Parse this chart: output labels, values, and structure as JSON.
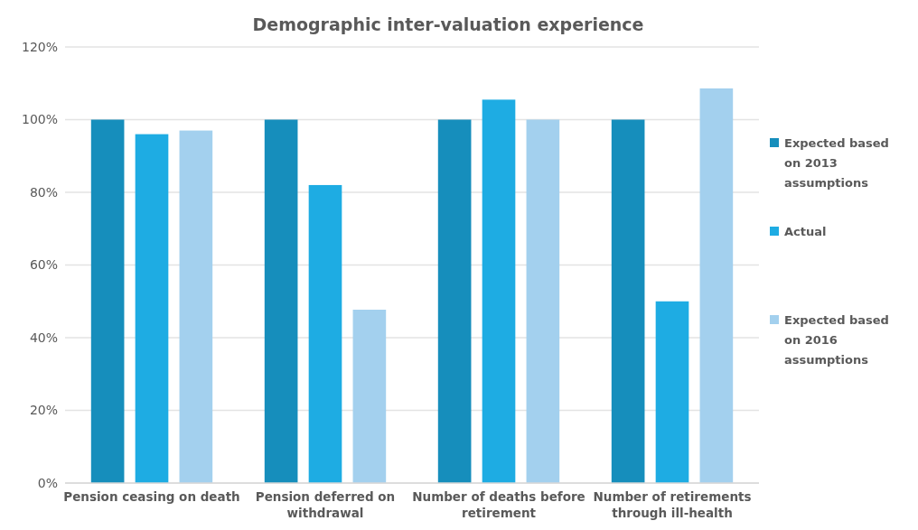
{
  "chart_data": {
    "type": "bar",
    "title": "Demographic inter-valuation experience",
    "categories": [
      "Pension ceasing on death",
      "Pension deferred on withdrawal",
      "Number of deaths before retirement",
      "Number of retirements through ill-health"
    ],
    "series": [
      {
        "name": "Expected based on 2013 assumptions",
        "color": "#168ebc",
        "values": [
          100,
          100,
          100,
          100
        ]
      },
      {
        "name": "Actual",
        "color": "#1eace3",
        "values": [
          96,
          82,
          105.5,
          50
        ]
      },
      {
        "name": "Expected based on 2016 assumptions",
        "color": "#a3d0ee",
        "values": [
          97,
          47.7,
          100,
          108.6
        ]
      }
    ],
    "ylim": [
      0,
      120
    ],
    "yticks": [
      {
        "value": 0,
        "label": "0%"
      },
      {
        "value": 20,
        "label": "20%"
      },
      {
        "value": 40,
        "label": "40%"
      },
      {
        "value": 60,
        "label": "60%"
      },
      {
        "value": 80,
        "label": "80%"
      },
      {
        "value": 100,
        "label": "100%"
      },
      {
        "value": 120,
        "label": "120%"
      }
    ],
    "grid": "y",
    "legend": "right"
  }
}
